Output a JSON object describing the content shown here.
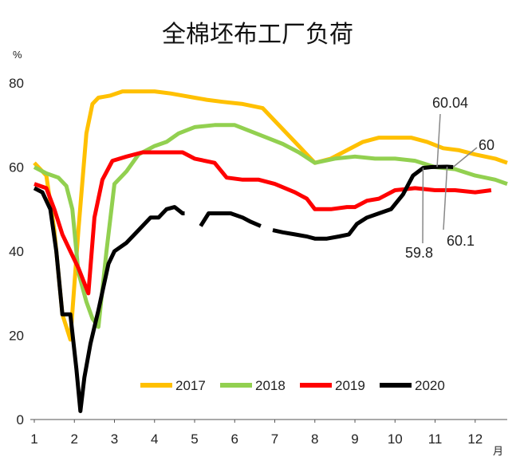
{
  "chart_data": {
    "type": "line",
    "title": "全棉坯布工厂负荷",
    "ylabel": "%",
    "xlabel": "月",
    "ylim": [
      0,
      80
    ],
    "xlim": [
      1,
      12.8
    ],
    "yticks": [
      "0",
      "20",
      "40",
      "60",
      "80"
    ],
    "xticks": [
      "1",
      "2",
      "3",
      "4",
      "5",
      "6",
      "7",
      "8",
      "9",
      "10",
      "11",
      "12"
    ],
    "legend_position": "bottom-center",
    "series": [
      {
        "name": "2017",
        "color": "#FFC000",
        "points": [
          [
            1,
            61
          ],
          [
            1.3,
            58
          ],
          [
            1.5,
            45
          ],
          [
            1.7,
            25
          ],
          [
            1.9,
            19
          ],
          [
            2.1,
            45
          ],
          [
            2.3,
            68
          ],
          [
            2.45,
            75
          ],
          [
            2.6,
            76.5
          ],
          [
            2.9,
            77
          ],
          [
            3.2,
            78
          ],
          [
            3.6,
            78
          ],
          [
            4,
            78
          ],
          [
            4.4,
            77.5
          ],
          [
            4.7,
            77
          ],
          [
            5,
            76.5
          ],
          [
            5.3,
            76
          ],
          [
            5.7,
            75.5
          ],
          [
            6.2,
            75
          ],
          [
            6.7,
            74
          ],
          [
            7,
            71
          ],
          [
            7.5,
            66
          ],
          [
            8,
            61
          ],
          [
            8.4,
            62
          ],
          [
            8.8,
            64
          ],
          [
            9.2,
            66
          ],
          [
            9.6,
            67
          ],
          [
            10,
            67
          ],
          [
            10.4,
            67
          ],
          [
            10.8,
            66
          ],
          [
            11.2,
            64.5
          ],
          [
            11.6,
            64
          ],
          [
            12,
            63
          ],
          [
            12.5,
            62
          ],
          [
            12.8,
            61
          ]
        ]
      },
      {
        "name": "2018",
        "color": "#92D050",
        "points": [
          [
            1,
            60
          ],
          [
            1.3,
            58.5
          ],
          [
            1.6,
            57.5
          ],
          [
            1.8,
            55.5
          ],
          [
            1.95,
            50
          ],
          [
            2.1,
            35
          ],
          [
            2.3,
            28
          ],
          [
            2.45,
            24
          ],
          [
            2.6,
            22
          ],
          [
            2.8,
            40
          ],
          [
            3,
            56
          ],
          [
            3.3,
            59
          ],
          [
            3.6,
            63
          ],
          [
            4,
            65
          ],
          [
            4.3,
            66
          ],
          [
            4.6,
            68
          ],
          [
            5,
            69.5
          ],
          [
            5.5,
            70
          ],
          [
            6,
            70
          ],
          [
            6.4,
            68.5
          ],
          [
            6.8,
            67
          ],
          [
            7.2,
            65.5
          ],
          [
            7.6,
            63.5
          ],
          [
            8,
            61
          ],
          [
            8.5,
            62
          ],
          [
            9,
            62.5
          ],
          [
            9.5,
            62
          ],
          [
            10,
            62
          ],
          [
            10.5,
            61.5
          ],
          [
            11,
            60
          ],
          [
            11.5,
            59.5
          ],
          [
            12,
            58
          ],
          [
            12.5,
            57
          ],
          [
            12.8,
            56
          ]
        ]
      },
      {
        "name": "2019",
        "color": "#FF0000",
        "points": [
          [
            1,
            56
          ],
          [
            1.3,
            55
          ],
          [
            1.5,
            50
          ],
          [
            1.7,
            44
          ],
          [
            1.9,
            40
          ],
          [
            2.1,
            36
          ],
          [
            2.35,
            30
          ],
          [
            2.5,
            48
          ],
          [
            2.7,
            57
          ],
          [
            2.95,
            61.5
          ],
          [
            3.3,
            62.5
          ],
          [
            3.7,
            63.5
          ],
          [
            4,
            63.5
          ],
          [
            4.4,
            63.5
          ],
          [
            4.7,
            63.5
          ],
          [
            5,
            62
          ],
          [
            5.5,
            61
          ],
          [
            5.8,
            57.5
          ],
          [
            6.2,
            57
          ],
          [
            6.6,
            57
          ],
          [
            7,
            56
          ],
          [
            7.5,
            54
          ],
          [
            7.8,
            52.5
          ],
          [
            8,
            50
          ],
          [
            8.4,
            50
          ],
          [
            8.8,
            50.5
          ],
          [
            9,
            50.5
          ],
          [
            9.3,
            52
          ],
          [
            9.6,
            52.5
          ],
          [
            10,
            54.5
          ],
          [
            10.5,
            55
          ],
          [
            11,
            54.5
          ],
          [
            11.5,
            54.5
          ],
          [
            12,
            54
          ],
          [
            12.4,
            54.5
          ]
        ]
      },
      {
        "name": "2020",
        "color": "#000000",
        "segments": [
          [
            [
              1,
              55
            ],
            [
              1.2,
              54
            ],
            [
              1.4,
              50
            ],
            [
              1.55,
              40
            ],
            [
              1.7,
              25
            ],
            [
              1.9,
              25
            ],
            [
              2.05,
              12
            ],
            [
              2.15,
              2
            ],
            [
              2.25,
              10
            ],
            [
              2.4,
              18
            ],
            [
              2.6,
              26
            ],
            [
              2.85,
              37
            ],
            [
              3,
              40
            ],
            [
              3.3,
              42
            ],
            [
              3.6,
              45
            ],
            [
              3.9,
              48
            ],
            [
              4.1,
              48
            ],
            [
              4.3,
              50
            ],
            [
              4.5,
              50.5
            ],
            [
              4.7,
              49
            ],
            [
              4.75,
              49
            ]
          ],
          [
            [
              5.15,
              46
            ],
            [
              5.35,
              49
            ],
            [
              5.6,
              49
            ],
            [
              5.9,
              49
            ],
            [
              6.2,
              48
            ],
            [
              6.4,
              47
            ],
            [
              6.65,
              46
            ]
          ],
          [
            [
              6.95,
              45
            ],
            [
              7.2,
              44.5
            ],
            [
              7.5,
              44
            ],
            [
              7.8,
              43.5
            ],
            [
              8,
              43
            ],
            [
              8.3,
              43
            ],
            [
              8.6,
              43.5
            ],
            [
              8.85,
              44
            ],
            [
              9.05,
              46.5
            ],
            [
              9.3,
              48
            ],
            [
              9.6,
              49
            ],
            [
              9.9,
              50
            ],
            [
              10.2,
              53.5
            ],
            [
              10.45,
              58
            ],
            [
              10.7,
              59.8
            ],
            [
              10.9,
              60
            ],
            [
              11.05,
              60.04
            ],
            [
              11.3,
              60.1
            ],
            [
              11.45,
              60
            ]
          ]
        ]
      }
    ],
    "annotations": [
      "60.04",
      "60",
      "59.8",
      "60.1"
    ]
  }
}
